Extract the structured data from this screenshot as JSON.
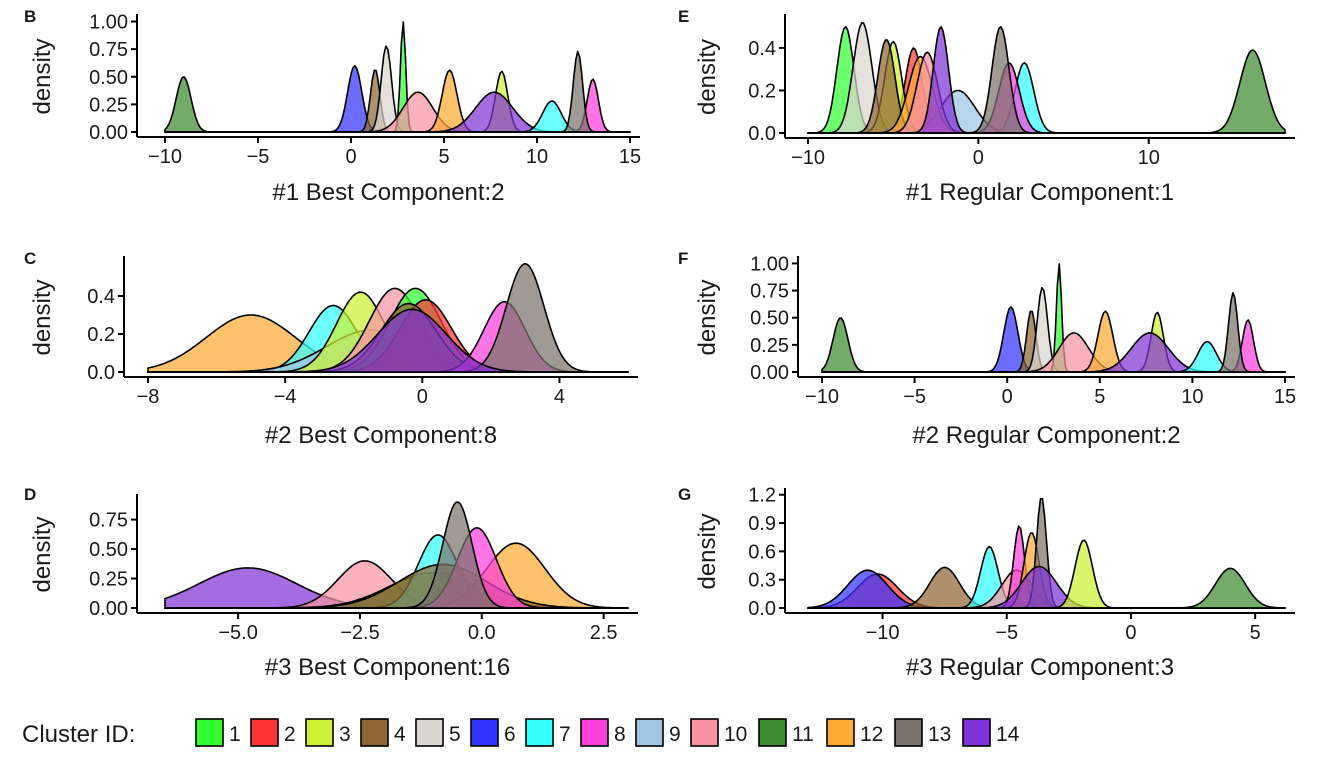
{
  "legend": {
    "title": "Cluster ID:",
    "items": [
      {
        "id": "1",
        "color": "#33ff33"
      },
      {
        "id": "2",
        "color": "#ff3333"
      },
      {
        "id": "3",
        "color": "#ccf033"
      },
      {
        "id": "4",
        "color": "#8f6633"
      },
      {
        "id": "5",
        "color": "#d9d5cf"
      },
      {
        "id": "6",
        "color": "#3333ff"
      },
      {
        "id": "7",
        "color": "#33ffff"
      },
      {
        "id": "8",
        "color": "#ff40dd"
      },
      {
        "id": "9",
        "color": "#a0c5e3"
      },
      {
        "id": "10",
        "color": "#f893a2"
      },
      {
        "id": "11",
        "color": "#3f8a2f"
      },
      {
        "id": "12",
        "color": "#ffaa33"
      },
      {
        "id": "13",
        "color": "#7a736b"
      },
      {
        "id": "14",
        "color": "#8033d6"
      }
    ]
  },
  "chart_data": [
    {
      "panel": "B",
      "type": "density",
      "xlabel": "#1 Best Component:2",
      "ylabel": "density",
      "xlim": [
        -10,
        15
      ],
      "ylim": [
        0,
        1.05
      ],
      "xticks": [
        -10,
        -5,
        0,
        5,
        10,
        15
      ],
      "yticks": [
        0,
        0.25,
        0.5,
        0.75,
        1.0
      ],
      "ytick_labels": [
        "0.00",
        "0.25",
        "0.50",
        "0.75",
        "1.00"
      ],
      "series": [
        {
          "cluster": "11",
          "peak_x": -9.0,
          "peak_y": 0.5,
          "sd": 0.4
        },
        {
          "cluster": "6",
          "peak_x": 0.2,
          "peak_y": 0.6,
          "sd": 0.38
        },
        {
          "cluster": "4",
          "peak_x": 1.3,
          "peak_y": 0.57,
          "sd": 0.25
        },
        {
          "cluster": "5",
          "peak_x": 1.9,
          "peak_y": 0.78,
          "sd": 0.28
        },
        {
          "cluster": "1",
          "peak_x": 2.8,
          "peak_y": 1.0,
          "sd": 0.14
        },
        {
          "cluster": "10",
          "peak_x": 3.6,
          "peak_y": 0.36,
          "sd": 0.8
        },
        {
          "cluster": "12",
          "peak_x": 5.3,
          "peak_y": 0.56,
          "sd": 0.4
        },
        {
          "cluster": "3",
          "peak_x": 8.1,
          "peak_y": 0.55,
          "sd": 0.33
        },
        {
          "cluster": "14",
          "peak_x": 7.7,
          "peak_y": 0.36,
          "sd": 1.0
        },
        {
          "cluster": "7",
          "peak_x": 10.8,
          "peak_y": 0.28,
          "sd": 0.5
        },
        {
          "cluster": "8",
          "peak_x": 13.0,
          "peak_y": 0.48,
          "sd": 0.3
        },
        {
          "cluster": "13",
          "peak_x": 12.2,
          "peak_y": 0.73,
          "sd": 0.25
        }
      ]
    },
    {
      "panel": "C",
      "type": "density",
      "xlabel": "#2 Best Component:8",
      "ylabel": "density",
      "xlim": [
        -8,
        6
      ],
      "ylim": [
        0,
        0.6
      ],
      "xticks": [
        -8,
        -4,
        0,
        4
      ],
      "yticks": [
        0,
        0.2,
        0.4
      ],
      "ytick_labels": [
        "0.0",
        "0.2",
        "0.4"
      ],
      "series": [
        {
          "cluster": "12",
          "peak_x": -5.0,
          "peak_y": 0.3,
          "sd": 1.3
        },
        {
          "cluster": "7",
          "peak_x": -2.6,
          "peak_y": 0.35,
          "sd": 0.7
        },
        {
          "cluster": "9",
          "peak_x": -1.5,
          "peak_y": 0.22,
          "sd": 1.3
        },
        {
          "cluster": "3",
          "peak_x": -1.8,
          "peak_y": 0.42,
          "sd": 0.7
        },
        {
          "cluster": "10",
          "peak_x": -0.8,
          "peak_y": 0.44,
          "sd": 0.75
        },
        {
          "cluster": "1",
          "peak_x": -0.2,
          "peak_y": 0.44,
          "sd": 0.75
        },
        {
          "cluster": "2",
          "peak_x": 0.1,
          "peak_y": 0.38,
          "sd": 0.75
        },
        {
          "cluster": "4",
          "peak_x": -0.4,
          "peak_y": 0.36,
          "sd": 0.8
        },
        {
          "cluster": "8",
          "peak_x": 2.4,
          "peak_y": 0.37,
          "sd": 0.6
        },
        {
          "cluster": "13",
          "peak_x": 3.0,
          "peak_y": 0.57,
          "sd": 0.55
        },
        {
          "cluster": "14",
          "peak_x": -0.3,
          "peak_y": 0.33,
          "sd": 1.0
        }
      ]
    },
    {
      "panel": "D",
      "type": "density",
      "xlabel": "#3 Best Component:16",
      "ylabel": "density",
      "xlim": [
        -6.5,
        3
      ],
      "ylim": [
        0,
        0.95
      ],
      "xticks": [
        -5.0,
        -2.5,
        0.0,
        2.5
      ],
      "xtick_labels": [
        "−5.0",
        "−2.5",
        "0.0",
        "2.5"
      ],
      "yticks": [
        0,
        0.25,
        0.5,
        0.75
      ],
      "ytick_labels": [
        "0.00",
        "0.25",
        "0.50",
        "0.75"
      ],
      "series": [
        {
          "cluster": "14",
          "peak_x": -4.8,
          "peak_y": 0.34,
          "sd": 1.0
        },
        {
          "cluster": "10",
          "peak_x": -2.4,
          "peak_y": 0.4,
          "sd": 0.55
        },
        {
          "cluster": "11",
          "peak_x": -1.0,
          "peak_y": 0.3,
          "sd": 0.9
        },
        {
          "cluster": "7",
          "peak_x": -0.9,
          "peak_y": 0.62,
          "sd": 0.4
        },
        {
          "cluster": "12",
          "peak_x": 0.7,
          "peak_y": 0.55,
          "sd": 0.6
        },
        {
          "cluster": "4",
          "peak_x": -0.8,
          "peak_y": 0.37,
          "sd": 0.9
        },
        {
          "cluster": "8",
          "peak_x": -0.1,
          "peak_y": 0.68,
          "sd": 0.4
        },
        {
          "cluster": "13",
          "peak_x": -0.5,
          "peak_y": 0.9,
          "sd": 0.3
        }
      ]
    },
    {
      "panel": "E",
      "type": "density",
      "xlabel": "#1 Regular Component:1",
      "ylabel": "density",
      "xlim": [
        -10,
        18
      ],
      "ylim": [
        0,
        0.55
      ],
      "xticks": [
        -10,
        0,
        10
      ],
      "xtick_labels": [
        "−10",
        "0",
        "10"
      ],
      "yticks": [
        0,
        0.2,
        0.4
      ],
      "ytick_labels": [
        "0.0",
        "0.2",
        "0.4"
      ],
      "series": [
        {
          "cluster": "1",
          "peak_x": -7.8,
          "peak_y": 0.5,
          "sd": 0.5
        },
        {
          "cluster": "5",
          "peak_x": -6.8,
          "peak_y": 0.52,
          "sd": 0.55
        },
        {
          "cluster": "2",
          "peak_x": -3.8,
          "peak_y": 0.4,
          "sd": 0.5
        },
        {
          "cluster": "3",
          "peak_x": -5.0,
          "peak_y": 0.43,
          "sd": 0.5
        },
        {
          "cluster": "4",
          "peak_x": -5.4,
          "peak_y": 0.44,
          "sd": 0.5
        },
        {
          "cluster": "9",
          "peak_x": -1.2,
          "peak_y": 0.2,
          "sd": 1.0
        },
        {
          "cluster": "12",
          "peak_x": -3.4,
          "peak_y": 0.36,
          "sd": 0.7
        },
        {
          "cluster": "10",
          "peak_x": -3.0,
          "peak_y": 0.38,
          "sd": 0.6
        },
        {
          "cluster": "7",
          "peak_x": 2.7,
          "peak_y": 0.33,
          "sd": 0.55
        },
        {
          "cluster": "8",
          "peak_x": 1.8,
          "peak_y": 0.33,
          "sd": 0.6
        },
        {
          "cluster": "13",
          "peak_x": 1.3,
          "peak_y": 0.5,
          "sd": 0.5
        },
        {
          "cluster": "14",
          "peak_x": -2.2,
          "peak_y": 0.5,
          "sd": 0.45
        },
        {
          "cluster": "11",
          "peak_x": 16.1,
          "peak_y": 0.39,
          "sd": 0.75
        }
      ]
    },
    {
      "panel": "F",
      "type": "density",
      "xlabel": "#2 Regular Component:2",
      "ylabel": "density",
      "xlim": [
        -10,
        15
      ],
      "ylim": [
        0,
        1.05
      ],
      "xticks": [
        -10,
        -5,
        0,
        5,
        10,
        15
      ],
      "yticks": [
        0,
        0.25,
        0.5,
        0.75,
        1.0
      ],
      "ytick_labels": [
        "0.00",
        "0.25",
        "0.50",
        "0.75",
        "1.00"
      ],
      "series": [
        {
          "cluster": "11",
          "peak_x": -9.0,
          "peak_y": 0.5,
          "sd": 0.4
        },
        {
          "cluster": "6",
          "peak_x": 0.2,
          "peak_y": 0.6,
          "sd": 0.38
        },
        {
          "cluster": "4",
          "peak_x": 1.3,
          "peak_y": 0.57,
          "sd": 0.25
        },
        {
          "cluster": "5",
          "peak_x": 1.9,
          "peak_y": 0.78,
          "sd": 0.28
        },
        {
          "cluster": "1",
          "peak_x": 2.8,
          "peak_y": 1.0,
          "sd": 0.14
        },
        {
          "cluster": "10",
          "peak_x": 3.6,
          "peak_y": 0.36,
          "sd": 0.8
        },
        {
          "cluster": "12",
          "peak_x": 5.3,
          "peak_y": 0.56,
          "sd": 0.4
        },
        {
          "cluster": "3",
          "peak_x": 8.1,
          "peak_y": 0.55,
          "sd": 0.33
        },
        {
          "cluster": "14",
          "peak_x": 7.7,
          "peak_y": 0.36,
          "sd": 1.0
        },
        {
          "cluster": "7",
          "peak_x": 10.8,
          "peak_y": 0.28,
          "sd": 0.5
        },
        {
          "cluster": "8",
          "peak_x": 13.0,
          "peak_y": 0.48,
          "sd": 0.3
        },
        {
          "cluster": "13",
          "peak_x": 12.2,
          "peak_y": 0.73,
          "sd": 0.25
        }
      ]
    },
    {
      "panel": "G",
      "type": "density",
      "xlabel": "#3 Regular Component:3",
      "ylabel": "density",
      "xlim": [
        -13,
        6.2
      ],
      "ylim": [
        0,
        1.25
      ],
      "xticks": [
        -10,
        -5,
        0,
        5
      ],
      "xtick_labels": [
        "−10",
        "−5",
        "0",
        "5"
      ],
      "yticks": [
        0,
        0.3,
        0.6,
        0.9,
        1.2
      ],
      "ytick_labels": [
        "0.0",
        "0.3",
        "0.6",
        "0.9",
        "1.2"
      ],
      "series": [
        {
          "cluster": "2",
          "peak_x": -10.2,
          "peak_y": 0.36,
          "sd": 0.8
        },
        {
          "cluster": "6",
          "peak_x": -10.6,
          "peak_y": 0.4,
          "sd": 0.8
        },
        {
          "cluster": "4",
          "peak_x": -7.5,
          "peak_y": 0.43,
          "sd": 0.6
        },
        {
          "cluster": "7",
          "peak_x": -5.7,
          "peak_y": 0.65,
          "sd": 0.35
        },
        {
          "cluster": "10",
          "peak_x": -4.6,
          "peak_y": 0.4,
          "sd": 0.6
        },
        {
          "cluster": "8",
          "peak_x": -4.5,
          "peak_y": 0.87,
          "sd": 0.22
        },
        {
          "cluster": "12",
          "peak_x": -4.0,
          "peak_y": 0.8,
          "sd": 0.3
        },
        {
          "cluster": "13",
          "peak_x": -3.6,
          "peak_y": 1.18,
          "sd": 0.2
        },
        {
          "cluster": "14",
          "peak_x": -3.7,
          "peak_y": 0.44,
          "sd": 0.7
        },
        {
          "cluster": "3",
          "peak_x": -1.9,
          "peak_y": 0.72,
          "sd": 0.35
        },
        {
          "cluster": "11",
          "peak_x": 4.0,
          "peak_y": 0.42,
          "sd": 0.6
        }
      ]
    }
  ]
}
